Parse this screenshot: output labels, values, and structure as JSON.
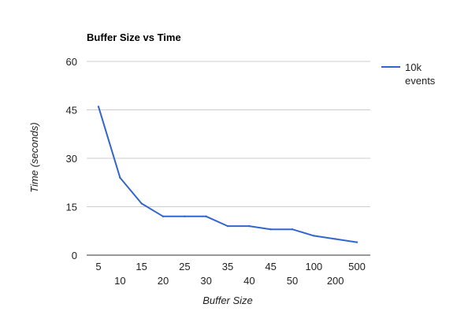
{
  "chart_data": {
    "type": "line",
    "title": "Buffer Size vs Time",
    "xlabel": "Buffer Size",
    "ylabel": "Time (seconds)",
    "categories": [
      "5",
      "10",
      "15",
      "20",
      "25",
      "30",
      "35",
      "40",
      "45",
      "50",
      "100",
      "200",
      "500"
    ],
    "series": [
      {
        "name": "10k events",
        "color": "#3366cc",
        "values": [
          46,
          24,
          16,
          12,
          12,
          12,
          9,
          9,
          8,
          8,
          6,
          5,
          4
        ]
      }
    ],
    "ylim": [
      0,
      60
    ],
    "yticks": [
      0,
      15,
      30,
      45,
      60
    ],
    "grid": true,
    "legend": "right"
  }
}
